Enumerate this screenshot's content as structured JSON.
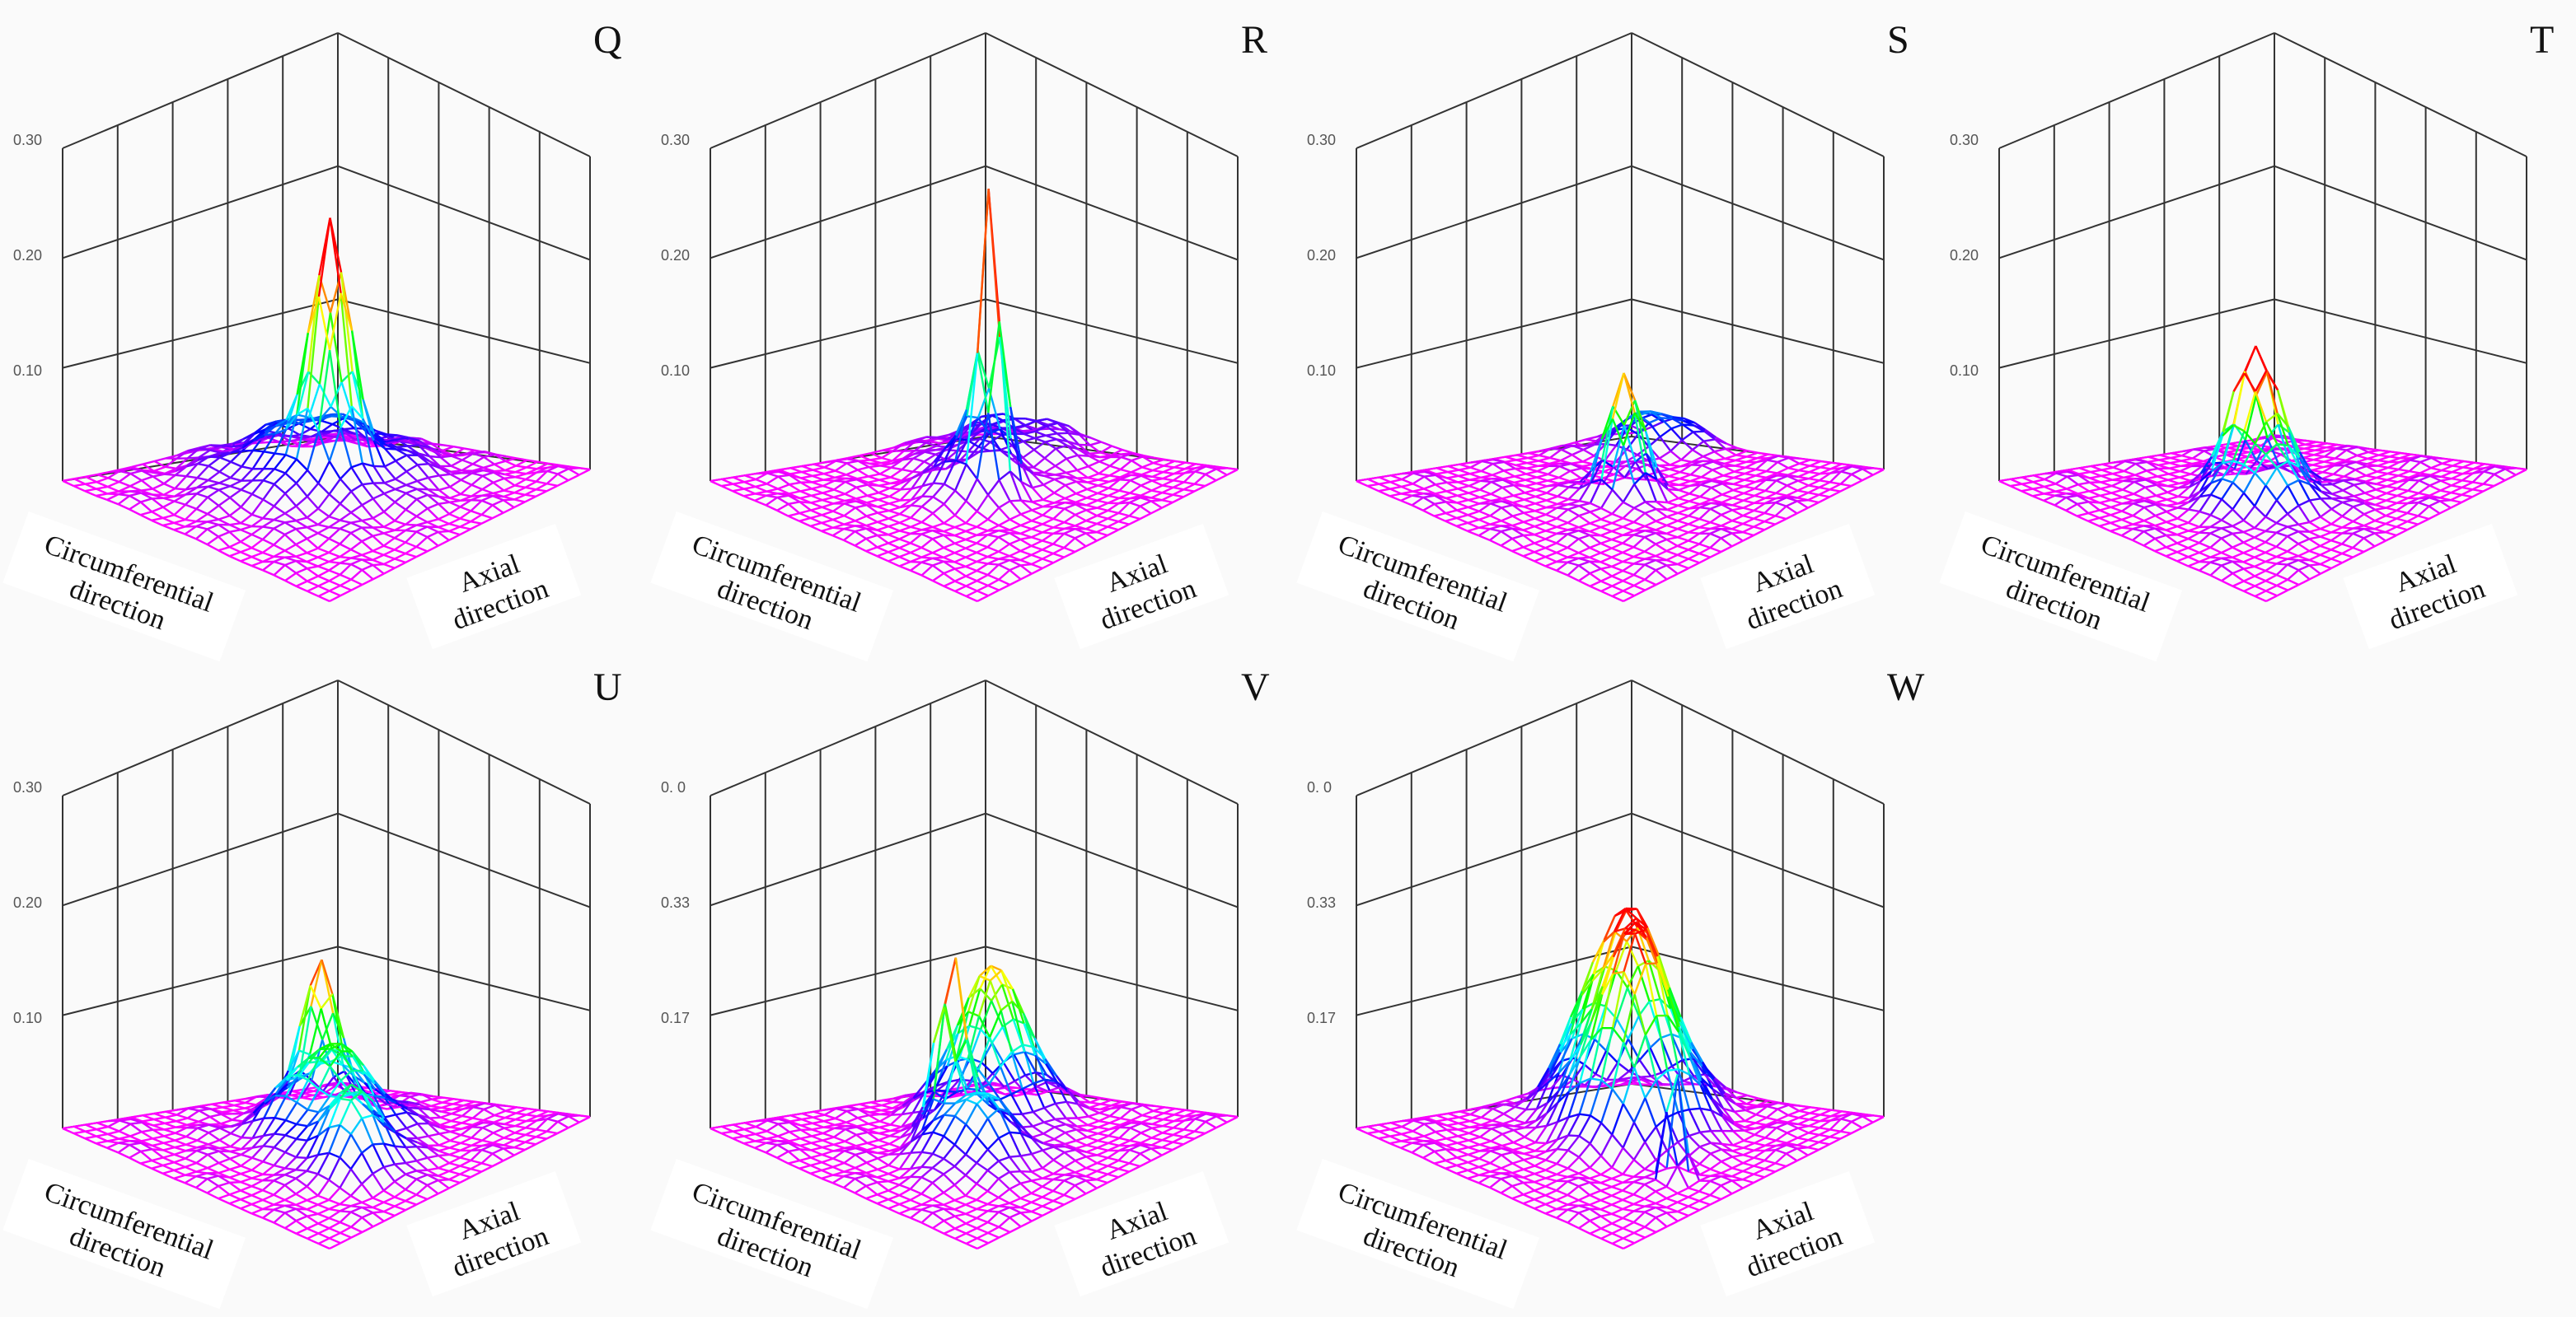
{
  "panels": [
    {
      "label": "Q",
      "zticks": [
        "0.30",
        "0.20",
        "0.10"
      ],
      "x_label": [
        "Circumferential",
        "direction"
      ],
      "y_label": [
        "Axial",
        "direction"
      ]
    },
    {
      "label": "R",
      "zticks": [
        "0.30",
        "0.20",
        "0.10"
      ],
      "x_label": [
        "Circumferential",
        "direction"
      ],
      "y_label": [
        "Axial",
        "direction"
      ]
    },
    {
      "label": "S",
      "zticks": [
        "0.30",
        "0.20",
        "0.10"
      ],
      "x_label": [
        "Circumferential",
        "direction"
      ],
      "y_label": [
        "Axial",
        "direction"
      ]
    },
    {
      "label": "T",
      "zticks": [
        "0.30",
        "0.20",
        "0.10"
      ],
      "x_label": [
        "Circumferential",
        "direction"
      ],
      "y_label": [
        "Axial",
        "direction"
      ]
    },
    {
      "label": "U",
      "zticks": [
        "0.30",
        "0.20",
        "0.10"
      ],
      "x_label": [
        "Circumferential",
        "direction"
      ],
      "y_label": [
        "Axial",
        "direction"
      ]
    },
    {
      "label": "V",
      "zticks": [
        "0. 0",
        "0.33",
        "0.17"
      ],
      "x_label": [
        "Circumferential",
        "direction"
      ],
      "y_label": [
        "Axial",
        "direction"
      ]
    },
    {
      "label": "W",
      "zticks": [
        "0. 0",
        "0.33",
        "0.17"
      ],
      "x_label": [
        "Circumferential",
        "direction"
      ],
      "y_label": [
        "Axial",
        "direction"
      ]
    }
  ]
}
